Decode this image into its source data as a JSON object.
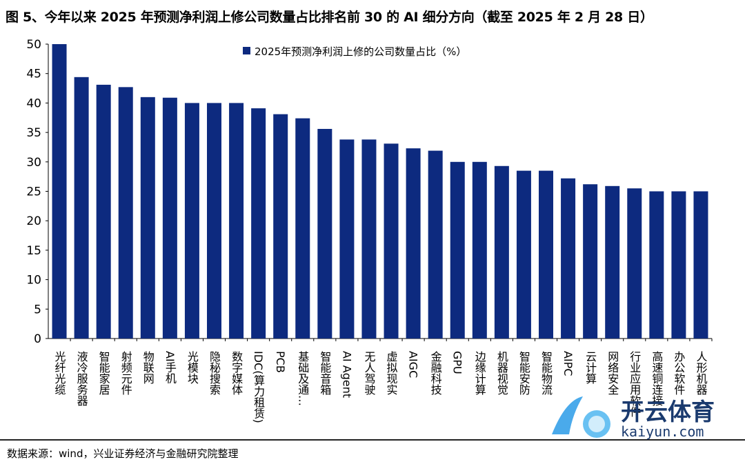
{
  "title": "图 5、今年以来 2025 年预测净利润上修公司数量占比排名前 30 的 AI 细分方向（截至 2025 年 2 月 28 日）",
  "source": "数据来源：wind，兴业证券经济与金融研究院整理",
  "watermark": {
    "text": "开云体育",
    "url": "kaiyun.com"
  },
  "chart_data": {
    "type": "bar",
    "title": "",
    "xlabel": "",
    "ylabel": "",
    "ylim": [
      0,
      50
    ],
    "yticks": [
      0,
      5,
      10,
      15,
      20,
      25,
      30,
      35,
      40,
      45,
      50
    ],
    "grid": false,
    "legend_position": "top-center",
    "bar_color": "#0d2a7f",
    "categories": [
      "光纤光缆",
      "液冷服务器",
      "智能家居",
      "射频元件",
      "物联网",
      "AI手机",
      "光模块",
      "隐秘搜索",
      "数字媒体",
      "IDC(算力租赁)",
      "PCB",
      "基础及通…",
      "智能音箱",
      "AI Agent",
      "无人驾驶",
      "虚拟现实",
      "AIGC",
      "金融科技",
      "GPU",
      "边缘计算",
      "机器视觉",
      "智能安防",
      "智能物流",
      "AIPC",
      "云计算",
      "网络安全",
      "行业应用软件",
      "高速铜连接",
      "办公软件",
      "人形机器"
    ],
    "series": [
      {
        "name": "2025年预测净利润上修的公司数量占比（%）",
        "values": [
          50.0,
          44.4,
          43.1,
          42.7,
          41.0,
          40.9,
          40.0,
          40.0,
          40.0,
          39.1,
          38.1,
          37.4,
          35.6,
          33.8,
          33.8,
          33.1,
          32.3,
          31.9,
          30.0,
          30.0,
          29.3,
          28.5,
          28.5,
          27.2,
          26.2,
          25.9,
          25.5,
          25.0,
          25.0,
          25.0
        ]
      }
    ]
  }
}
